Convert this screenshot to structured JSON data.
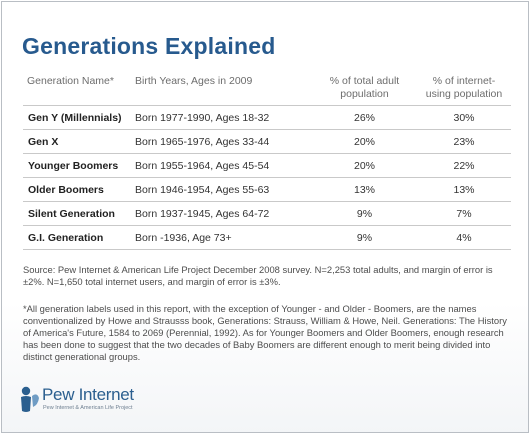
{
  "title": "Generations Explained",
  "table": {
    "headers": {
      "name": "Generation Name*",
      "birth": "Birth Years, Ages in 2009",
      "adult": "% of total adult population",
      "internet": "% of internet-using population"
    },
    "rows": [
      {
        "name": "Gen Y (Millennials)",
        "birth": "Born 1977-1990, Ages 18-32",
        "adult": "26%",
        "internet": "30%"
      },
      {
        "name": "Gen X",
        "birth": "Born 1965-1976, Ages 33-44",
        "adult": "20%",
        "internet": "23%"
      },
      {
        "name": "Younger Boomers",
        "birth": "Born 1955-1964, Ages 45-54",
        "adult": "20%",
        "internet": "22%"
      },
      {
        "name": "Older Boomers",
        "birth": "Born 1946-1954, Ages 55-63",
        "adult": "13%",
        "internet": "13%"
      },
      {
        "name": "Silent Generation",
        "birth": "Born 1937-1945, Ages 64-72",
        "adult": "9%",
        "internet": "7%"
      },
      {
        "name": "G.I. Generation",
        "birth": "Born  -1936, Age 73+",
        "adult": "9%",
        "internet": "4%"
      }
    ]
  },
  "source": "Source: Pew Internet & American Life Project December 2008 survey. N=2,253 total adults, and margin of error is ±2%. N=1,650 total internet users, and margin of error is ±3%.",
  "footnote": "*All generation labels used in this report, with the exception of Younger - and Older - Boomers, are the names conventionalized by Howe and Strausss book, Generations: Strauss, William & Howe, Neil. Generations: The History of America's Future, 1584 to 2069 (Perennial, 1992). As for Younger Boomers and Older Boomers, enough research has been done to suggest that the two decades of Baby Boomers are different enough to merit being divided into distinct generational groups.",
  "logo": {
    "word_pew": "Pew",
    "word_internet": "Internet",
    "tagline": "Pew Internet & American Life Project",
    "icon": "pew-person-icon",
    "color": "#2b5f8f"
  },
  "colors": {
    "title": "#275a8e",
    "rule": "#c9c9c9"
  }
}
